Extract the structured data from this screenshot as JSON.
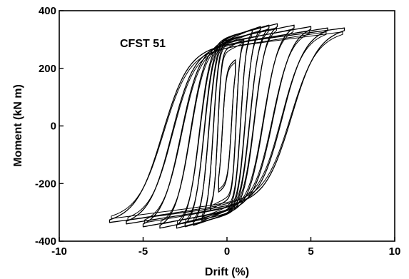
{
  "chart_data": {
    "type": "line",
    "xlabel": "Drift (%)",
    "ylabel": "Moment (kN m)",
    "xlim": [
      -10,
      10
    ],
    "ylim": [
      -400,
      400
    ],
    "xticks": [
      -10,
      -5,
      0,
      5,
      10
    ],
    "yticks": [
      -400,
      -200,
      0,
      200,
      400
    ],
    "grid": false,
    "annotation": "CFST 51",
    "line_color": "#000000",
    "series": [
      {
        "loops": [
          {
            "drift_amplitude": 0.5,
            "peak_moment_pos": 230,
            "peak_moment_neg": -230
          },
          {
            "drift_amplitude": 1.0,
            "peak_moment_pos": 300,
            "peak_moment_neg": -290
          },
          {
            "drift_amplitude": 1.5,
            "peak_moment_pos": 335,
            "peak_moment_neg": -330
          },
          {
            "drift_amplitude": 2.0,
            "peak_moment_pos": 345,
            "peak_moment_neg": -345
          },
          {
            "drift_amplitude": 2.5,
            "peak_moment_pos": 350,
            "peak_moment_neg": -350
          },
          {
            "drift_amplitude": 3.0,
            "peak_moment_pos": 355,
            "peak_moment_neg": -355
          },
          {
            "drift_amplitude": 4.0,
            "peak_moment_pos": 350,
            "peak_moment_neg": -355
          },
          {
            "drift_amplitude": 5.0,
            "peak_moment_pos": 345,
            "peak_moment_neg": -350
          },
          {
            "drift_amplitude": 6.0,
            "peak_moment_pos": 340,
            "peak_moment_neg": -340
          },
          {
            "drift_amplitude": 7.0,
            "peak_moment_pos": 340,
            "peak_moment_neg": -335
          }
        ]
      }
    ]
  }
}
